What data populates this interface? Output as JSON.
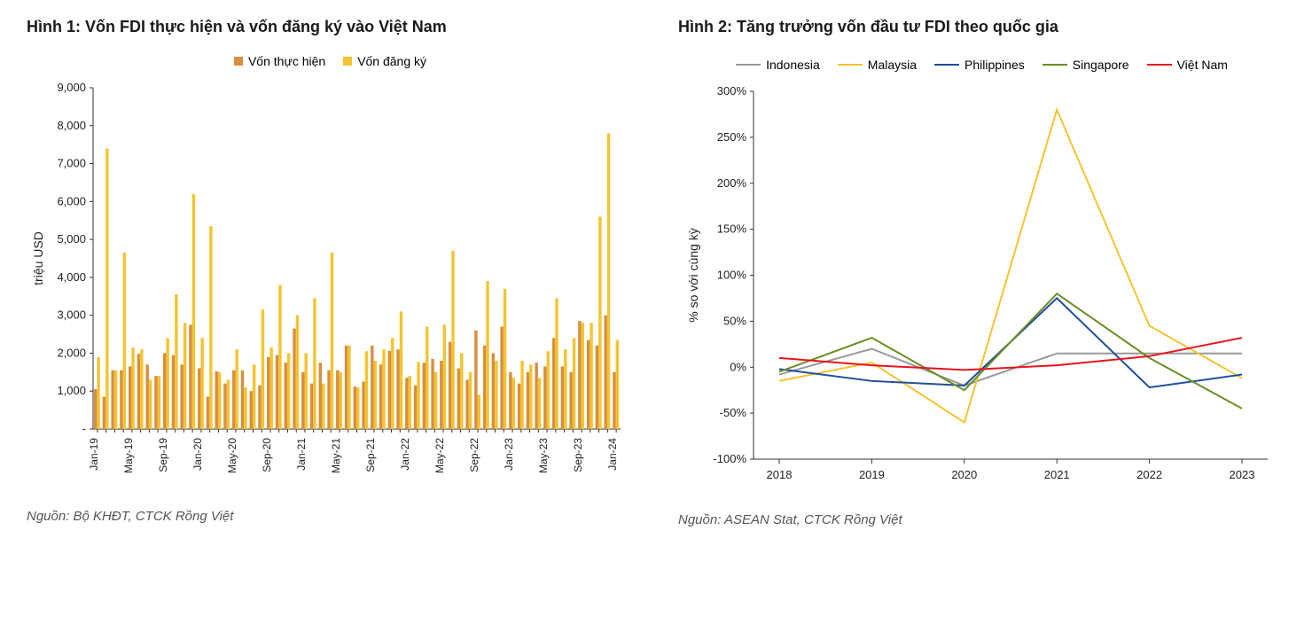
{
  "panel1": {
    "title": "Hình 1: Vốn FDI thực hiện và vốn đăng ký vào Việt Nam",
    "source": "Nguồn: Bộ KHĐT, CTCK Rồng Việt",
    "chart": {
      "type": "bar",
      "ylabel": "triệu USD",
      "ylim": [
        0,
        9000
      ],
      "ytick_step": 1000,
      "yticks": [
        0,
        1000,
        2000,
        3000,
        4000,
        5000,
        6000,
        7000,
        8000,
        9000
      ],
      "ytick_labels": [
        "-",
        "1,000",
        "2,000",
        "3,000",
        "4,000",
        "5,000",
        "6,000",
        "7,000",
        "8,000",
        "9,000"
      ],
      "background_color": "#ffffff",
      "axis_color": "#333333",
      "grid": false,
      "legend": {
        "position": "top",
        "items": [
          {
            "label": "Vốn thực hiện",
            "color": "#d98e3e"
          },
          {
            "label": "Vốn đăng ký",
            "color": "#f4c430"
          }
        ]
      },
      "bar_width": 0.35,
      "series": [
        {
          "name": "Vốn thực hiện",
          "color": "#d98e3e",
          "values": [
            1050,
            850,
            1550,
            1550,
            1650,
            1980,
            1700,
            1400,
            2000,
            1950,
            1700,
            2750,
            1600,
            850,
            1520,
            1200,
            1550,
            1550,
            1000,
            1150,
            1900,
            1950,
            1750,
            2650,
            1500,
            1200,
            1750,
            1550,
            1550,
            2200,
            1120,
            1250,
            2200,
            1700,
            2060,
            2100,
            1350,
            1150,
            1750,
            1850,
            1800,
            2300,
            1600,
            1300,
            2600,
            2200,
            2000,
            2700,
            1500,
            1200,
            1500,
            1750,
            1650,
            2400,
            1650,
            1500,
            2850,
            2350,
            2200,
            3000,
            1500
          ]
        },
        {
          "name": "Vốn đăng ký",
          "color": "#f4c430",
          "values": [
            1900,
            7400,
            1550,
            4650,
            2150,
            2100,
            1300,
            1400,
            2400,
            3550,
            2800,
            6200,
            2400,
            5350,
            1500,
            1300,
            2100,
            1100,
            1700,
            3150,
            2150,
            3800,
            2000,
            3000,
            2000,
            3450,
            1200,
            4650,
            1500,
            2200,
            1100,
            2050,
            1800,
            2100,
            2400,
            3100,
            1400,
            1770,
            2700,
            1500,
            2750,
            4700,
            2000,
            1500,
            900,
            3900,
            1800,
            3700,
            1350,
            1800,
            1700,
            1350,
            2050,
            3450,
            2100,
            2400,
            2800,
            2800,
            5600,
            7800,
            2350
          ]
        }
      ],
      "x_labels": [
        "Jan-19",
        "",
        "",
        "",
        "May-19",
        "",
        "",
        "",
        "Sep-19",
        "",
        "",
        "",
        "Jan-20",
        "",
        "",
        "",
        "May-20",
        "",
        "",
        "",
        "Sep-20",
        "",
        "",
        "",
        "Jan-21",
        "",
        "",
        "",
        "May-21",
        "",
        "",
        "",
        "Sep-21",
        "",
        "",
        "",
        "Jan-22",
        "",
        "",
        "",
        "May-22",
        "",
        "",
        "",
        "Sep-22",
        "",
        "",
        "",
        "Jan-23",
        "",
        "",
        "",
        "May-23",
        "",
        "",
        "",
        "Sep-23",
        "",
        "",
        "",
        "Jan-24"
      ]
    }
  },
  "panel2": {
    "title": "Hình 2: Tăng trưởng vốn đầu tư FDI theo quốc gia",
    "source": "Nguồn: ASEAN Stat, CTCK Rồng Việt",
    "chart": {
      "type": "line",
      "ylabel": "% so với cùng kỳ",
      "ylim": [
        -100,
        300
      ],
      "ytick_step": 50,
      "yticks": [
        -100,
        -50,
        0,
        50,
        100,
        150,
        200,
        250,
        300
      ],
      "ytick_labels": [
        "-100%",
        "-50%",
        "0%",
        "50%",
        "100%",
        "150%",
        "200%",
        "250%",
        "300%"
      ],
      "x_categories": [
        "2018",
        "2019",
        "2020",
        "2021",
        "2022",
        "2023"
      ],
      "background_color": "#ffffff",
      "axis_color": "#333333",
      "grid": false,
      "line_width": 2,
      "legend": {
        "position": "top",
        "items": [
          {
            "label": "Indonesia",
            "color": "#999999"
          },
          {
            "label": "Malaysia",
            "color": "#f4c430"
          },
          {
            "label": "Philippines",
            "color": "#1f4e9c"
          },
          {
            "label": "Singapore",
            "color": "#6b8e23"
          },
          {
            "label": "Việt Nam",
            "color": "#e6141b"
          }
        ]
      },
      "series": [
        {
          "name": "Indonesia",
          "color": "#999999",
          "values": [
            -8,
            20,
            -20,
            15,
            15,
            15
          ]
        },
        {
          "name": "Malaysia",
          "color": "#f4c430",
          "values": [
            -15,
            5,
            -60,
            280,
            45,
            -12
          ]
        },
        {
          "name": "Philippines",
          "color": "#1f4e9c",
          "values": [
            -2,
            -15,
            -20,
            75,
            -22,
            -8
          ]
        },
        {
          "name": "Singapore",
          "color": "#6b8e23",
          "values": [
            -5,
            32,
            -25,
            80,
            10,
            -45
          ]
        },
        {
          "name": "Việt Nam",
          "color": "#e6141b",
          "values": [
            10,
            2,
            -3,
            2,
            12,
            32
          ]
        }
      ]
    }
  }
}
